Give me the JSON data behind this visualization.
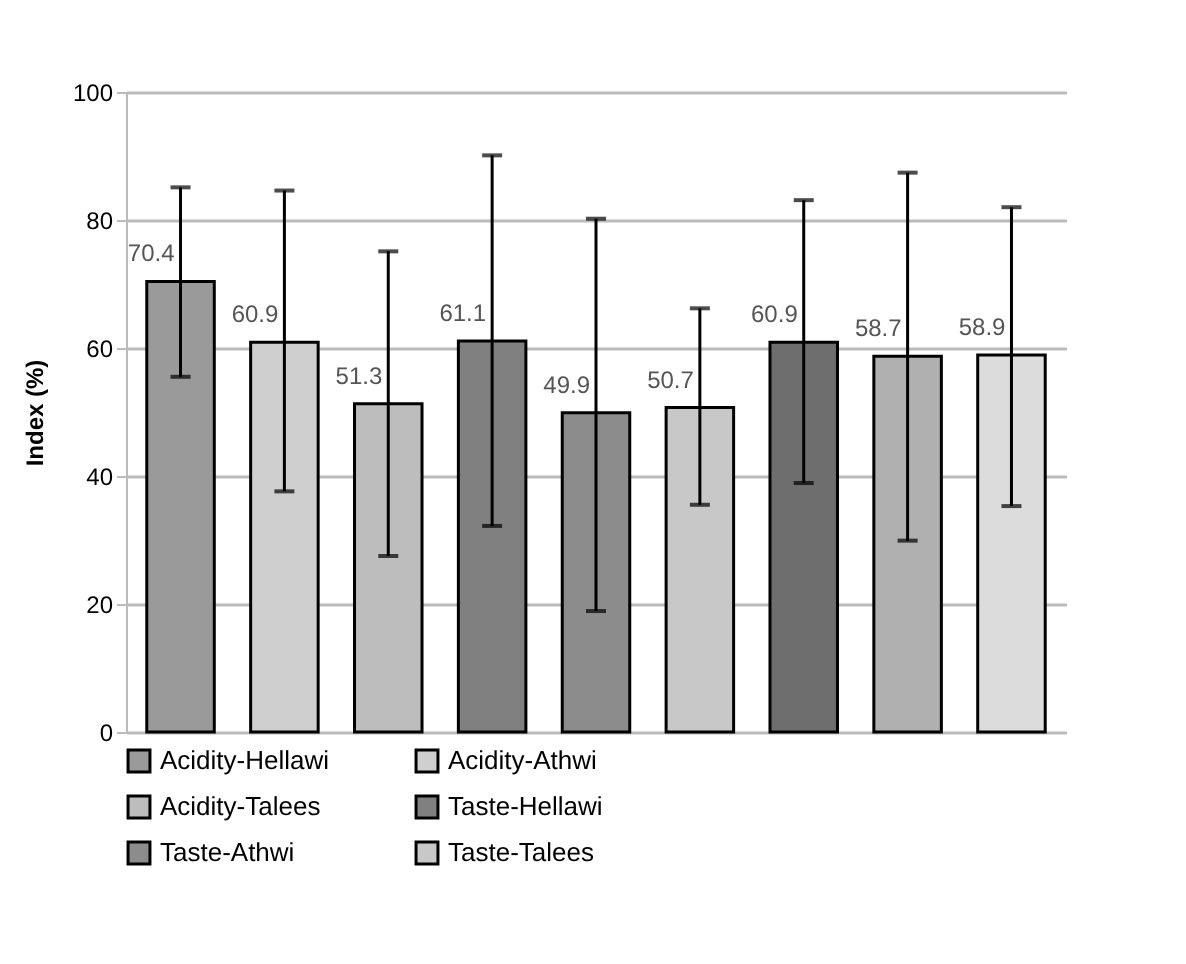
{
  "chart_data": {
    "type": "bar",
    "ylabel": "Index (%)",
    "categories": [
      null,
      null,
      null,
      null,
      null,
      null,
      null,
      null,
      null
    ],
    "series": [
      {
        "name": "Acidity-Hellawi",
        "color": "#9a9a9a",
        "values": [
          70.4,
          null,
          null,
          null,
          null,
          null,
          null,
          null,
          null
        ],
        "errors": [
          [
            55.5,
            85.1
          ],
          null,
          null,
          null,
          null,
          null,
          null,
          null,
          null
        ]
      },
      {
        "name": "Acidity-Athwi",
        "color": "#cfcfcf",
        "values": [
          null,
          60.9,
          null,
          null,
          null,
          null,
          null,
          null,
          null
        ],
        "errors": [
          null,
          [
            37.6,
            84.6
          ],
          null,
          null,
          null,
          null,
          null,
          null,
          null
        ]
      },
      {
        "name": "Acidity-Talees",
        "color": "#bdbdbd",
        "values": [
          null,
          null,
          51.3,
          null,
          null,
          null,
          null,
          null,
          null
        ],
        "errors": [
          null,
          null,
          [
            27.5,
            75.1
          ],
          null,
          null,
          null,
          null,
          null,
          null
        ]
      },
      {
        "name": "Taste-Hellawi",
        "color": "#808080",
        "values": [
          null,
          null,
          null,
          61.1,
          null,
          null,
          null,
          null,
          null
        ],
        "errors": [
          null,
          null,
          null,
          [
            32.2,
            90.1
          ],
          null,
          null,
          null,
          null,
          null
        ]
      },
      {
        "name": "Taste-Athwi",
        "color": "#8c8c8c",
        "values": [
          null,
          null,
          null,
          null,
          49.9,
          null,
          null,
          null,
          null
        ],
        "errors": [
          null,
          null,
          null,
          null,
          [
            18.9,
            80.2
          ],
          null,
          null,
          null,
          null
        ]
      },
      {
        "name": "Taste-Talees",
        "color": "#c8c8c8",
        "values": [
          null,
          null,
          null,
          null,
          null,
          50.7,
          null,
          null,
          null
        ],
        "errors": [
          null,
          null,
          null,
          null,
          null,
          [
            35.5,
            66.2
          ],
          null,
          null,
          null
        ]
      },
      {
        "color": "#6e6e6e",
        "values": [
          null,
          null,
          null,
          null,
          null,
          null,
          60.9,
          null,
          null
        ],
        "errors": [
          null,
          null,
          null,
          null,
          null,
          null,
          [
            38.9,
            83.1
          ],
          null,
          null
        ]
      },
      {
        "color": "#b0b0b0",
        "values": [
          null,
          null,
          null,
          null,
          null,
          null,
          null,
          58.7,
          null
        ],
        "errors": [
          null,
          null,
          null,
          null,
          null,
          null,
          null,
          [
            29.9,
            87.4
          ],
          null
        ]
      },
      {
        "color": "#dcdcdc",
        "values": [
          null,
          null,
          null,
          null,
          null,
          null,
          null,
          null,
          58.9
        ],
        "errors": [
          null,
          null,
          null,
          null,
          null,
          null,
          null,
          null,
          [
            35.3,
            82.0
          ]
        ]
      }
    ],
    "ylim": [
      0,
      100
    ],
    "yticks": [
      0,
      20,
      40,
      60,
      80,
      100
    ],
    "grid": "y",
    "legend": "bottom",
    "data_labels": true
  }
}
